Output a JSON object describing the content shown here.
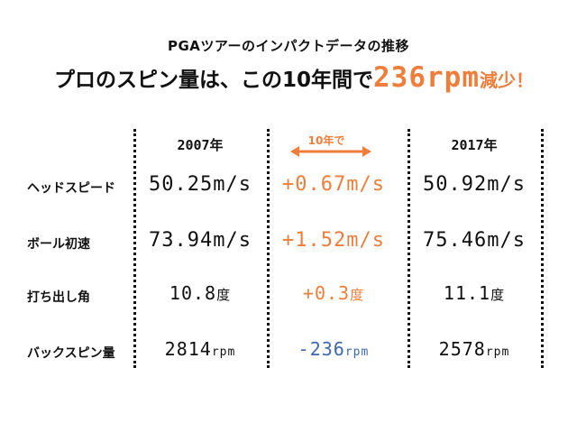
{
  "subtitle": "PGAツアーのインパクトデータの推移",
  "headline": {
    "main": "プロのスピン量は、この10年間で",
    "accent": "236rpm",
    "tail": "減少！"
  },
  "colors": {
    "accent": "#ee7e3c",
    "negative": "#3d68b0",
    "text": "#111111"
  },
  "chart_data": {
    "type": "table",
    "title": "プロのスピン量は、この10年間で236rpm減少！",
    "subtitle": "PGAツアーのインパクトデータの推移",
    "columns": [
      "2007年",
      "10年で",
      "2017年"
    ],
    "rows": [
      {
        "label": "ヘッドスピード",
        "y2007": "50.25m/s",
        "change": "+0.67m/s",
        "y2017": "50.92m/s"
      },
      {
        "label": "ボール初速",
        "y2007": "73.94m/s",
        "change": "+1.52m/s",
        "y2017": "75.46m/s"
      },
      {
        "label": "打ち出し角",
        "y2007": "10.8度",
        "change": "+0.3度",
        "y2017": "11.1度"
      },
      {
        "label": "バックスピン量",
        "y2007": "2814rpm",
        "change": "-236rpm",
        "y2017": "2578rpm"
      }
    ]
  }
}
